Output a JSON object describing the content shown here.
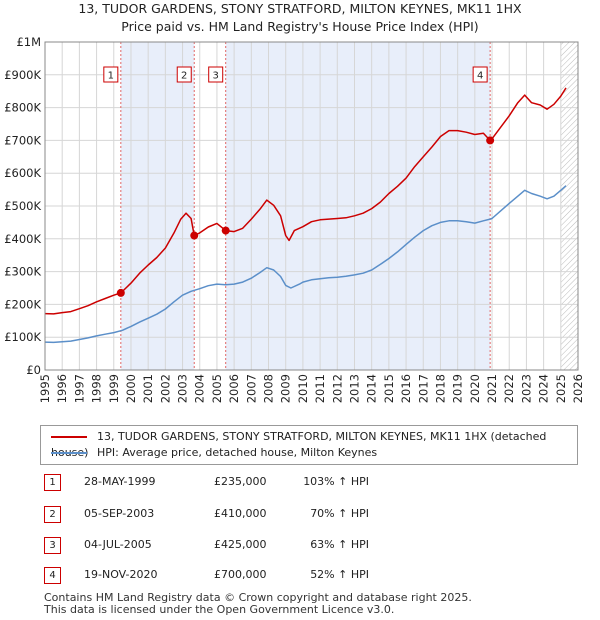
{
  "header": {
    "title_line1": "13, TUDOR GARDENS, STONY STRATFORD, MILTON KEYNES, MK11 1HX",
    "title_line2": "Price paid vs. HM Land Registry's House Price Index (HPI)"
  },
  "chart_data": {
    "type": "line",
    "title": "13, TUDOR GARDENS, STONY STRATFORD, MILTON KEYNES, MK11 1HX — Price paid vs. HM Land Registry's House Price Index (HPI)",
    "xlabel": "",
    "ylabel": "",
    "xlim": [
      1995,
      2026
    ],
    "ylim": [
      0,
      1000000
    ],
    "x_ticks": [
      "1995",
      "1996",
      "1997",
      "1998",
      "1999",
      "2000",
      "2001",
      "2002",
      "2003",
      "2004",
      "2005",
      "2006",
      "2007",
      "2008",
      "2009",
      "2010",
      "2011",
      "2012",
      "2013",
      "2014",
      "2015",
      "2016",
      "2017",
      "2018",
      "2019",
      "2020",
      "2021",
      "2022",
      "2023",
      "2024",
      "2025",
      "2026"
    ],
    "y_ticks": [
      {
        "value": 0,
        "label": "£0"
      },
      {
        "value": 100000,
        "label": "£100K"
      },
      {
        "value": 200000,
        "label": "£200K"
      },
      {
        "value": 300000,
        "label": "£300K"
      },
      {
        "value": 400000,
        "label": "£400K"
      },
      {
        "value": 500000,
        "label": "£500K"
      },
      {
        "value": 600000,
        "label": "£600K"
      },
      {
        "value": 700000,
        "label": "£700K"
      },
      {
        "value": 800000,
        "label": "£800K"
      },
      {
        "value": 900000,
        "label": "£900K"
      },
      {
        "value": 1000000,
        "label": "£1M"
      }
    ],
    "grid": true,
    "shaded_ranges": [
      [
        1999.41,
        2003.68
      ],
      [
        2005.51,
        2020.89
      ]
    ],
    "hatched_from": 2025.0,
    "series": [
      {
        "name": "13, TUDOR GARDENS, STONY STRATFORD, MILTON KEYNES, MK11 1HX (detached house)",
        "color": "#cc0000",
        "points": [
          [
            1995.0,
            172000
          ],
          [
            1995.5,
            171000
          ],
          [
            1996.0,
            175000
          ],
          [
            1996.5,
            178000
          ],
          [
            1997.0,
            187000
          ],
          [
            1997.5,
            196000
          ],
          [
            1998.0,
            208000
          ],
          [
            1998.5,
            218000
          ],
          [
            1999.0,
            228000
          ],
          [
            1999.41,
            235000
          ],
          [
            2000.0,
            265000
          ],
          [
            2000.5,
            295000
          ],
          [
            2001.0,
            320000
          ],
          [
            2001.5,
            343000
          ],
          [
            2002.0,
            372000
          ],
          [
            2002.5,
            418000
          ],
          [
            2002.9,
            460000
          ],
          [
            2003.2,
            478000
          ],
          [
            2003.5,
            462000
          ],
          [
            2003.68,
            410000
          ],
          [
            2004.0,
            418000
          ],
          [
            2004.5,
            436000
          ],
          [
            2005.0,
            447000
          ],
          [
            2005.51,
            425000
          ],
          [
            2006.0,
            422000
          ],
          [
            2006.5,
            432000
          ],
          [
            2007.0,
            460000
          ],
          [
            2007.5,
            490000
          ],
          [
            2007.9,
            518000
          ],
          [
            2008.3,
            502000
          ],
          [
            2008.7,
            470000
          ],
          [
            2009.0,
            410000
          ],
          [
            2009.2,
            395000
          ],
          [
            2009.5,
            425000
          ],
          [
            2010.0,
            437000
          ],
          [
            2010.5,
            452000
          ],
          [
            2011.0,
            458000
          ],
          [
            2011.5,
            460000
          ],
          [
            2012.0,
            462000
          ],
          [
            2012.5,
            464000
          ],
          [
            2013.0,
            470000
          ],
          [
            2013.5,
            478000
          ],
          [
            2014.0,
            492000
          ],
          [
            2014.5,
            512000
          ],
          [
            2015.0,
            538000
          ],
          [
            2015.5,
            560000
          ],
          [
            2016.0,
            585000
          ],
          [
            2016.5,
            620000
          ],
          [
            2017.0,
            650000
          ],
          [
            2017.5,
            680000
          ],
          [
            2018.0,
            712000
          ],
          [
            2018.5,
            730000
          ],
          [
            2019.0,
            730000
          ],
          [
            2019.5,
            725000
          ],
          [
            2020.0,
            718000
          ],
          [
            2020.5,
            722000
          ],
          [
            2020.89,
            700000
          ],
          [
            2021.0,
            705000
          ],
          [
            2021.5,
            740000
          ],
          [
            2022.0,
            775000
          ],
          [
            2022.5,
            815000
          ],
          [
            2022.9,
            838000
          ],
          [
            2023.3,
            815000
          ],
          [
            2023.8,
            808000
          ],
          [
            2024.2,
            795000
          ],
          [
            2024.6,
            810000
          ],
          [
            2025.0,
            835000
          ],
          [
            2025.3,
            860000
          ]
        ]
      },
      {
        "name": "HPI: Average price, detached house, Milton Keynes",
        "color": "#5b8fc9",
        "points": [
          [
            1995.0,
            85000
          ],
          [
            1995.5,
            84000
          ],
          [
            1996.0,
            86000
          ],
          [
            1996.5,
            88000
          ],
          [
            1997.0,
            93000
          ],
          [
            1997.5,
            98000
          ],
          [
            1998.0,
            104000
          ],
          [
            1998.5,
            109000
          ],
          [
            1999.0,
            114000
          ],
          [
            1999.5,
            121000
          ],
          [
            2000.0,
            133000
          ],
          [
            2000.5,
            146000
          ],
          [
            2001.0,
            158000
          ],
          [
            2001.5,
            170000
          ],
          [
            2002.0,
            186000
          ],
          [
            2002.5,
            208000
          ],
          [
            2003.0,
            228000
          ],
          [
            2003.5,
            240000
          ],
          [
            2004.0,
            248000
          ],
          [
            2004.5,
            257000
          ],
          [
            2005.0,
            262000
          ],
          [
            2005.5,
            260000
          ],
          [
            2006.0,
            262000
          ],
          [
            2006.5,
            268000
          ],
          [
            2007.0,
            280000
          ],
          [
            2007.5,
            297000
          ],
          [
            2007.9,
            312000
          ],
          [
            2008.3,
            305000
          ],
          [
            2008.7,
            285000
          ],
          [
            2009.0,
            258000
          ],
          [
            2009.3,
            250000
          ],
          [
            2009.8,
            262000
          ],
          [
            2010.0,
            268000
          ],
          [
            2010.5,
            275000
          ],
          [
            2011.0,
            278000
          ],
          [
            2011.5,
            281000
          ],
          [
            2012.0,
            283000
          ],
          [
            2012.5,
            286000
          ],
          [
            2013.0,
            290000
          ],
          [
            2013.5,
            295000
          ],
          [
            2014.0,
            305000
          ],
          [
            2014.5,
            322000
          ],
          [
            2015.0,
            340000
          ],
          [
            2015.5,
            360000
          ],
          [
            2016.0,
            383000
          ],
          [
            2016.5,
            405000
          ],
          [
            2017.0,
            425000
          ],
          [
            2017.5,
            440000
          ],
          [
            2018.0,
            450000
          ],
          [
            2018.5,
            455000
          ],
          [
            2019.0,
            455000
          ],
          [
            2019.5,
            452000
          ],
          [
            2020.0,
            448000
          ],
          [
            2020.5,
            455000
          ],
          [
            2020.89,
            460000
          ],
          [
            2021.0,
            462000
          ],
          [
            2021.5,
            485000
          ],
          [
            2022.0,
            508000
          ],
          [
            2022.5,
            530000
          ],
          [
            2022.9,
            548000
          ],
          [
            2023.3,
            538000
          ],
          [
            2023.8,
            530000
          ],
          [
            2024.2,
            522000
          ],
          [
            2024.6,
            530000
          ],
          [
            2025.0,
            548000
          ],
          [
            2025.3,
            562000
          ]
        ]
      }
    ],
    "sales": [
      {
        "label": "1",
        "x": 1999.41,
        "price": 235000
      },
      {
        "label": "2",
        "x": 2003.68,
        "price": 410000
      },
      {
        "label": "3",
        "x": 2005.51,
        "price": 425000
      },
      {
        "label": "4",
        "x": 2020.89,
        "price": 700000
      }
    ]
  },
  "legend": {
    "items": [
      {
        "label": "13, TUDOR GARDENS, STONY STRATFORD, MILTON KEYNES, MK11 1HX (detached house)",
        "color": "#cc0000"
      },
      {
        "label": "HPI: Average price, detached house, Milton Keynes",
        "color": "#5b8fc9"
      }
    ]
  },
  "transactions": [
    {
      "num": "1",
      "date": "28-MAY-1999",
      "price": "£235,000",
      "hpi": "103% ↑ HPI"
    },
    {
      "num": "2",
      "date": "05-SEP-2003",
      "price": "£410,000",
      "hpi": "70% ↑ HPI"
    },
    {
      "num": "3",
      "date": "04-JUL-2005",
      "price": "£425,000",
      "hpi": "63% ↑ HPI"
    },
    {
      "num": "4",
      "date": "19-NOV-2020",
      "price": "£700,000",
      "hpi": "52% ↑ HPI"
    }
  ],
  "footer": {
    "line1": "Contains HM Land Registry data © Crown copyright and database right 2025.",
    "line2": "This data is licensed under the Open Government Licence v3.0."
  }
}
